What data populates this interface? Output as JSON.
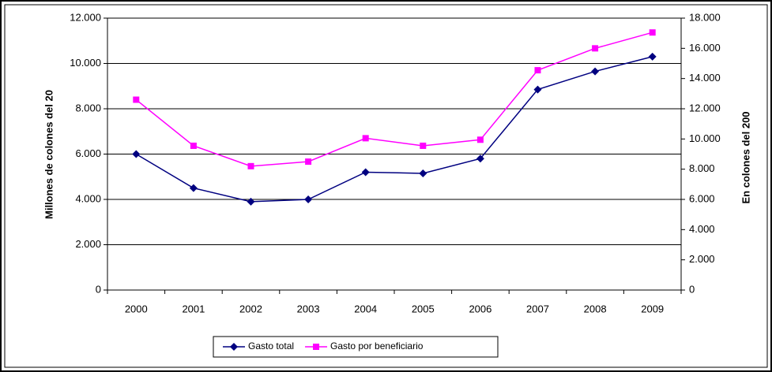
{
  "chart_data": {
    "type": "line",
    "categories": [
      "2000",
      "2001",
      "2002",
      "2003",
      "2004",
      "2005",
      "2006",
      "2007",
      "2008",
      "2009"
    ],
    "y_label": "Millones de colones del 20",
    "y2_label": "En colones del 200",
    "series": [
      {
        "name": "Gasto total",
        "color": "#000080",
        "marker": "diamond",
        "values": [
          6000,
          4500,
          3900,
          4000,
          5200,
          5150,
          5800,
          8850,
          9650,
          10300
        ]
      },
      {
        "name": "Gasto por beneficiario",
        "color": "#ff00ff",
        "marker": "square",
        "axis": "y2",
        "values": [
          12600,
          9550,
          8200,
          8500,
          10050,
          9550,
          9950,
          14550,
          16000,
          17050
        ]
      }
    ],
    "ylim": [
      0,
      12000
    ],
    "yticks": [
      0,
      {
        "value": 2000,
        "label": "2.000"
      },
      {
        "value": 4000,
        "label": "4.000"
      },
      {
        "value": 6000,
        "label": "6.000"
      },
      {
        "value": 8000,
        "label": "8.000"
      },
      {
        "value": 10000,
        "label": "10.000"
      },
      {
        "value": 12000,
        "label": "12.000"
      }
    ],
    "y2lim": [
      0,
      18000
    ],
    "y2ticks": [
      0,
      {
        "value": 2000,
        "label": "2.000"
      },
      {
        "value": 4000,
        "label": "4.000"
      },
      {
        "value": 6000,
        "label": "6.000"
      },
      {
        "value": 8000,
        "label": "8.000"
      },
      {
        "value": 10000,
        "label": "10.000"
      },
      {
        "value": 12000,
        "label": "12.000"
      },
      {
        "value": 14000,
        "label": "14.000"
      },
      {
        "value": 16000,
        "label": "16.000"
      },
      {
        "value": 18000,
        "label": "18.000"
      }
    ],
    "grid": true,
    "legend": "bottom"
  }
}
